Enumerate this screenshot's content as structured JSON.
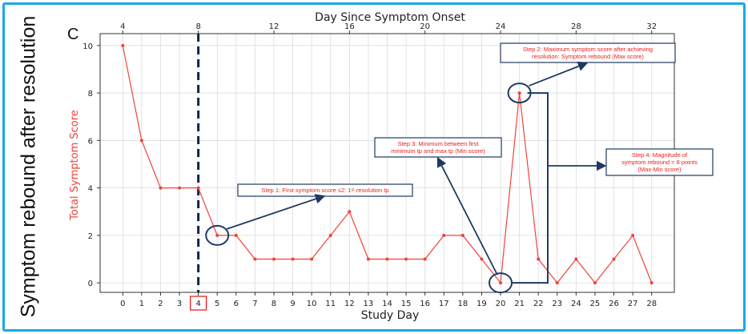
{
  "panel_letter": "C",
  "side_label": "Symptom rebound after resolution",
  "callouts": [
    {
      "lines": [
        "Step 1: First symptom score ≤2: 1ˢᵗ resolution tp"
      ]
    },
    {
      "lines": [
        "Step 2: Maximum symptom score after achieving",
        "resolution: Symptom rebound (Max score)"
      ]
    },
    {
      "lines": [
        "Step 3: Minimum between first",
        "minimum tp and max tp (Min score)"
      ]
    },
    {
      "lines": [
        "Step 4: Magnitude of",
        "symptom rebound = 8 points",
        "(Max-Min score)"
      ]
    }
  ],
  "colors": {
    "series": "#f0423a",
    "frame": "#18a9e8",
    "annotation": "#1f3a60",
    "highlight": "#e8201c"
  },
  "chart_data": {
    "type": "line",
    "title": "",
    "xlabel": "Study Day",
    "ylabel": "Total Symptom Score",
    "secondary_xlabel": "Day Since Symptom Onset",
    "x": [
      0,
      1,
      2,
      3,
      4,
      5,
      6,
      7,
      8,
      9,
      10,
      11,
      12,
      13,
      14,
      15,
      16,
      17,
      18,
      19,
      20,
      21,
      22,
      23,
      24,
      25,
      26,
      27,
      28
    ],
    "x_tick_labels": [
      "0",
      "1",
      "2",
      "3",
      "4",
      "5",
      "6",
      "7",
      "8",
      "9",
      "10",
      "11",
      "12",
      "13",
      "14",
      "15",
      "16",
      "17",
      "18",
      "19",
      "20",
      "21",
      "22",
      "23",
      "24",
      "25",
      "26",
      "27",
      "28"
    ],
    "series": [
      {
        "values": [
          10,
          6,
          4,
          4,
          4,
          2,
          2,
          1,
          1,
          1,
          1,
          2,
          3,
          1,
          1,
          1,
          1,
          2,
          2,
          1,
          0,
          8,
          1,
          0,
          1,
          0,
          1,
          2,
          0
        ]
      }
    ],
    "xlim": [
      -1.2,
      29.2
    ],
    "ylim": [
      -0.4,
      10.5
    ],
    "y_ticks": [
      0,
      2,
      4,
      6,
      8,
      10
    ],
    "y_tick_labels": [
      "0",
      "2",
      "4",
      "6",
      "8",
      "10"
    ],
    "secondary_x_ticks": [
      4,
      8,
      12,
      16,
      20,
      24,
      28,
      32
    ],
    "secondary_x_tick_labels": [
      "4",
      "8",
      "12",
      "16",
      "20",
      "24",
      "28",
      "32"
    ],
    "secondary_offset": 4,
    "vertical_marker_x": 4,
    "highlighted_tick": "4",
    "circled_x": [
      5,
      20,
      21
    ],
    "grid": true,
    "legend": "none"
  }
}
